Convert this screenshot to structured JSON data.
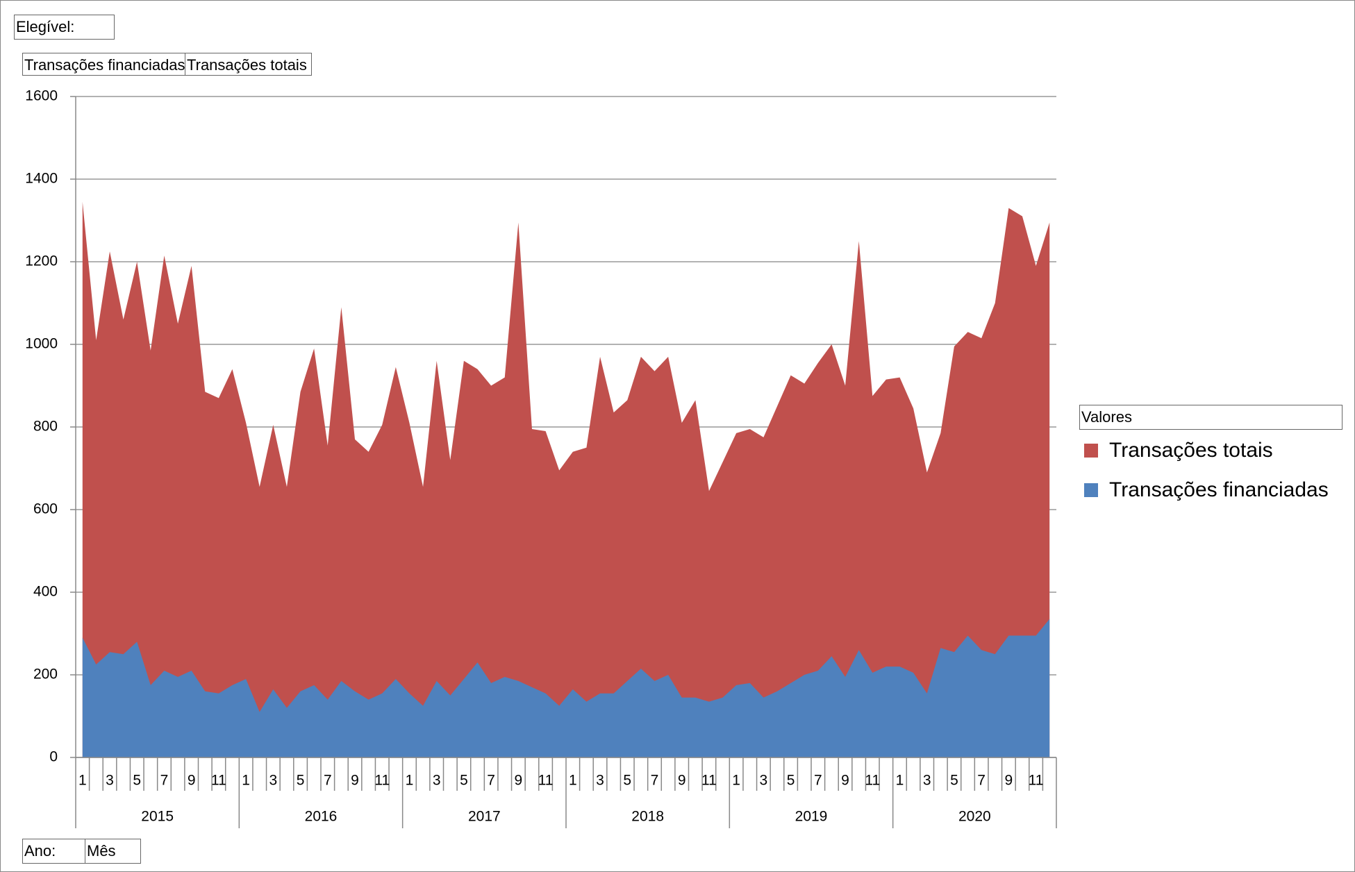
{
  "chart_data": {
    "type": "area",
    "filter_label": "Elegível:",
    "field_buttons": [
      "Transações financiadas",
      "Transações totais"
    ],
    "legend_title": "Valores",
    "axis_fields": [
      "Ano:",
      "Mês"
    ],
    "categories": [
      "1",
      null,
      "3",
      null,
      "5",
      null,
      "7",
      null,
      "9",
      null,
      "11",
      null,
      "1",
      null,
      "3",
      null,
      "5",
      null,
      "7",
      null,
      "9",
      null,
      "11",
      null,
      "1",
      null,
      "3",
      null,
      "5",
      null,
      "7",
      null,
      "9",
      null,
      "11",
      null,
      "1",
      null,
      "3",
      null,
      "5",
      null,
      "7",
      null,
      "9",
      null,
      "11",
      null,
      "1",
      null,
      "3",
      null,
      "5",
      null,
      "7",
      null,
      "9",
      null,
      "11",
      null,
      "1",
      null,
      "3",
      null,
      "5",
      null,
      "7",
      null,
      "9",
      null,
      "11",
      null
    ],
    "groups": [
      "2015",
      "2016",
      "2017",
      "2018",
      "2019",
      "2020"
    ],
    "series": [
      {
        "name": "Transações totais",
        "color": "#c0504d",
        "values": [
          1345,
          1010,
          1225,
          1060,
          1200,
          985,
          1215,
          1050,
          1190,
          885,
          870,
          940,
          810,
          655,
          805,
          655,
          885,
          990,
          755,
          1090,
          770,
          740,
          805,
          945,
          810,
          655,
          960,
          720,
          960,
          940,
          900,
          920,
          1295,
          795,
          790,
          695,
          740,
          750,
          970,
          835,
          865,
          970,
          935,
          970,
          810,
          865,
          645,
          715,
          785,
          795,
          775,
          850,
          925,
          905,
          955,
          1000,
          900,
          1250,
          875,
          915,
          920,
          845,
          690,
          785,
          995,
          1030,
          1015,
          1100,
          1330,
          1310,
          1190,
          1295
        ]
      },
      {
        "name": "Transações financiadas",
        "color": "#4f81bd",
        "values": [
          290,
          225,
          255,
          250,
          280,
          175,
          210,
          195,
          210,
          160,
          155,
          175,
          190,
          110,
          165,
          120,
          160,
          175,
          140,
          185,
          160,
          140,
          155,
          190,
          155,
          125,
          185,
          150,
          190,
          230,
          180,
          195,
          185,
          170,
          155,
          125,
          165,
          135,
          155,
          155,
          185,
          215,
          185,
          200,
          145,
          145,
          135,
          145,
          175,
          180,
          145,
          160,
          180,
          200,
          210,
          245,
          195,
          260,
          205,
          220,
          220,
          205,
          155,
          265,
          255,
          295,
          260,
          250,
          295,
          295,
          295,
          335
        ]
      }
    ],
    "ylim": [
      0,
      1600
    ],
    "yticks": [
      0,
      200,
      400,
      600,
      800,
      1000,
      1200,
      1400,
      1600
    ],
    "grid": true,
    "legend": "right"
  }
}
